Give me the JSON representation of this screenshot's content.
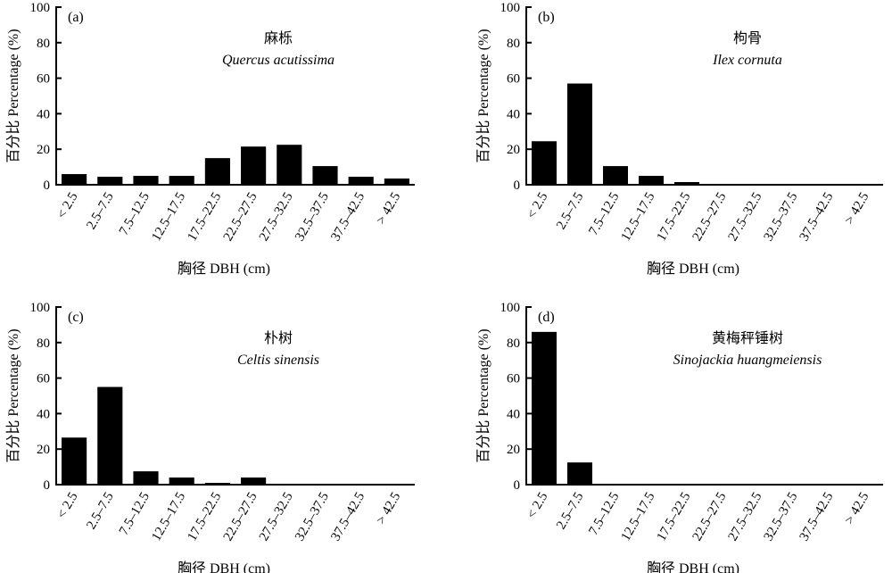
{
  "chart_data": [
    {
      "type": "bar",
      "panel_label": "(a)",
      "title": "麻栎",
      "subtitle": "Quercus acutissima",
      "xlabel": "胸径 DBH (cm)",
      "ylabel": "百分比 Percentage (%)",
      "ylim": [
        0,
        100
      ],
      "yticks": [
        "0",
        "20",
        "40",
        "60",
        "80",
        "100"
      ],
      "categories": [
        "< 2.5",
        "2.5–7.5",
        "7.5–12.5",
        "12.5–17.5",
        "17.5–22.5",
        "22.5–27.5",
        "27.5–32.5",
        "32.5–37.5",
        "37.5–42.5",
        "> 42.5"
      ],
      "values": [
        6,
        4.5,
        5,
        5,
        15,
        21.5,
        22.5,
        10.5,
        4.5,
        3.5
      ],
      "bar_color": "#000000"
    },
    {
      "type": "bar",
      "panel_label": "(b)",
      "title": "枸骨",
      "subtitle": "Ilex cornuta",
      "xlabel": "胸径 DBH (cm)",
      "ylabel": "百分比 Percentage (%)",
      "ylim": [
        0,
        100
      ],
      "yticks": [
        "0",
        "20",
        "40",
        "60",
        "80",
        "100"
      ],
      "categories": [
        "< 2.5",
        "2.5–7.5",
        "7.5–12.5",
        "12.5–17.5",
        "17.5–22.5",
        "22.5–27.5",
        "27.5–32.5",
        "32.5–37.5",
        "37.5–42.5",
        "> 42.5"
      ],
      "values": [
        24.5,
        57,
        10.5,
        5,
        1.5,
        0.5,
        0,
        0,
        0,
        0
      ],
      "bar_color": "#000000"
    },
    {
      "type": "bar",
      "panel_label": "(c)",
      "title": "朴树",
      "subtitle": "Celtis sinensis",
      "xlabel": "胸径 DBH (cm)",
      "ylabel": "百分比 Percentage (%)",
      "ylim": [
        0,
        100
      ],
      "yticks": [
        "0",
        "20",
        "40",
        "60",
        "80",
        "100"
      ],
      "categories": [
        "< 2.5",
        "2.5–7.5",
        "7.5–12.5",
        "12.5–17.5",
        "17.5–22.5",
        "22.5–27.5",
        "27.5–32.5",
        "32.5–37.5",
        "37.5–42.5",
        "> 42.5"
      ],
      "values": [
        26.5,
        55,
        7.5,
        4,
        1,
        4,
        0.5,
        0,
        0.5,
        0
      ],
      "bar_color": "#000000"
    },
    {
      "type": "bar",
      "panel_label": "(d)",
      "title": "黄梅秤锤树",
      "subtitle": "Sinojackia huangmeiensis",
      "xlabel": "胸径 DBH (cm)",
      "ylabel": "百分比 Percentage (%)",
      "ylim": [
        0,
        100
      ],
      "yticks": [
        "0",
        "20",
        "40",
        "60",
        "80",
        "100"
      ],
      "categories": [
        "< 2.5",
        "2.5–7.5",
        "7.5–12.5",
        "12.5–17.5",
        "17.5–22.5",
        "22.5–27.5",
        "27.5–32.5",
        "32.5–37.5",
        "37.5–42.5",
        "> 42.5"
      ],
      "values": [
        86,
        12.5,
        0.5,
        0,
        0,
        0,
        0,
        0,
        0,
        0
      ],
      "bar_color": "#000000"
    }
  ]
}
